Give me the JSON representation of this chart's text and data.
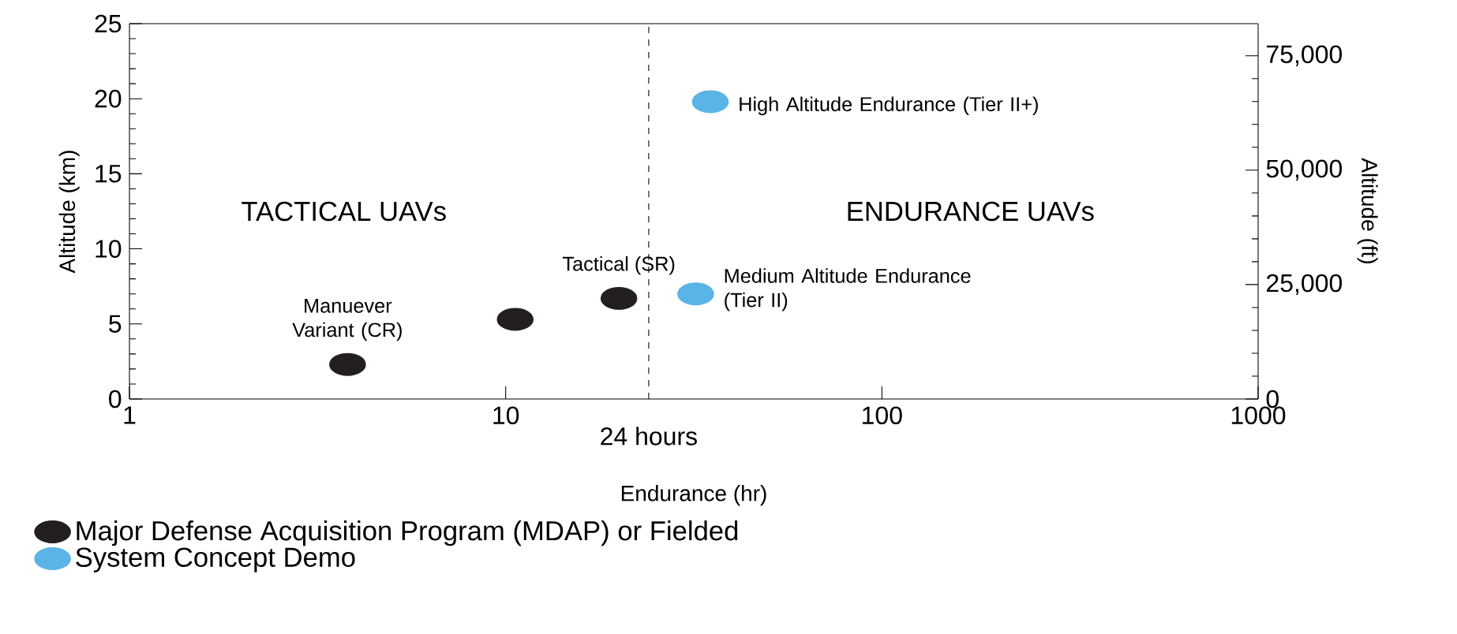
{
  "chart_data": {
    "type": "scatter",
    "xlabel": "Endurance (hr)",
    "ylabel": "Altitude (km)",
    "y2label": "Altitude (ft)",
    "log": "x",
    "xlim": [
      1,
      1000
    ],
    "xticks": [
      1,
      10,
      100,
      1000
    ],
    "ylim": [
      0,
      25
    ],
    "yticks": [
      0,
      5,
      10,
      15,
      20,
      25
    ],
    "y2lim": [
      0,
      82021
    ],
    "y2ticks": [
      0,
      {
        "value": 25000,
        "label": "25,000"
      },
      {
        "value": 50000,
        "label": "50,000"
      },
      {
        "value": 75000,
        "label": "75,000"
      }
    ],
    "marker": "circle",
    "legend": "bottom left",
    "grid": false,
    "series": [
      {
        "name": "Major Defense Acquisition Program (MDAP) or Fielded",
        "color": "#231f20",
        "x": [
          3.8,
          10.6,
          20
        ],
        "values": [
          2.3,
          5.3,
          6.7
        ]
      },
      {
        "name": "System Concept Demo",
        "color": "#5ab4e5",
        "x": [
          32,
          35
        ],
        "values": [
          7,
          19.8
        ]
      }
    ],
    "ref_lines": [
      {
        "axis": "x",
        "value": 24,
        "label": "24 hours",
        "line_style": "dashed"
      }
    ],
    "annotations": [
      "TACTICAL UAVs",
      "ENDURANCE UAVs",
      {
        "text": "Manuever Variant (CR)",
        "x": 3.8,
        "y": 2.3
      },
      {
        "text": "Tactical (SR)",
        "x": 20,
        "y": 6.7
      },
      {
        "text": "Medium Altitude Endurance (Tier II)",
        "x": 32,
        "y": 7
      },
      {
        "text": "High Altitude Endurance (Tier II+)",
        "x": 35,
        "y": 19.8
      }
    ]
  }
}
